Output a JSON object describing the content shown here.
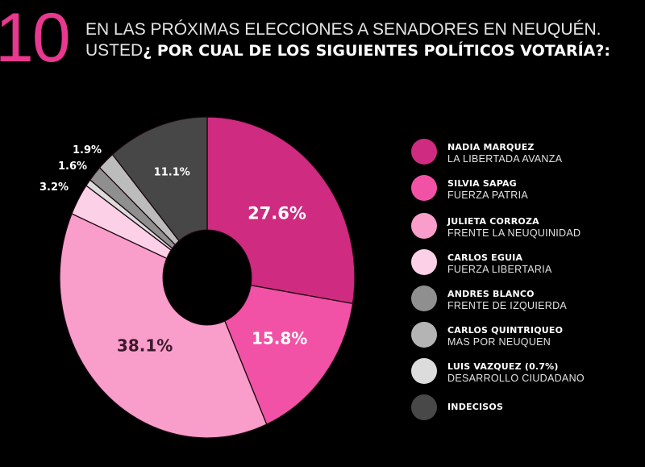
{
  "header": {
    "number": "10",
    "line1": "EN LAS PRÓXIMAS ELECCIONES A SENADORES EN NEUQUÉN.",
    "line2_prefix": "USTED",
    "line2_bold": "¿ POR CUAL DE LOS SIGUIENTES POLÍTICOS VOTARÍA?:",
    "accent_color": "#e8388f"
  },
  "chart_data": {
    "type": "pie",
    "donut": true,
    "title": "EN LAS PRÓXIMAS ELECCIONES A SENADORES EN NEUQUÉN. USTED¿ POR CUAL DE LOS SIGUIENTES POLÍTICOS VOTARÍA?:",
    "start": "top",
    "direction": "clockwise",
    "legend_position": "right",
    "slices": [
      {
        "name": "NADIA MARQUEZ",
        "party": "LA LIBERTADA AVANZA",
        "value": 27.6,
        "label": "27.6%",
        "color": "#cf2b80",
        "label_color": "#ffffff",
        "label_placement": "inside"
      },
      {
        "name": "SILVIA SAPAG",
        "party": "FUERZA PATRIA",
        "value": 15.8,
        "label": "15.8%",
        "color": "#f252a6",
        "label_color": "#ffffff",
        "label_placement": "inside"
      },
      {
        "name": "JULIETA CORROZA",
        "party": "FRENTE LA NEUQUINIDAD",
        "value": 38.1,
        "label": "38.1%",
        "color": "#f99dca",
        "label_color": "#3a1a2a",
        "label_placement": "inside"
      },
      {
        "name": "CARLOS EGUIA",
        "party": "FUERZA LIBERTARIA",
        "value": 3.2,
        "label": "3.2%",
        "color": "#fcd0e6",
        "label_color": "#ffffff",
        "label_placement": "outside"
      },
      {
        "name": "LUIS VAZQUEZ",
        "party": "DESARROLLO CIUDADANO",
        "value": 0.7,
        "label": "",
        "color": "#dcdcdc",
        "label_color": "#ffffff",
        "label_placement": "none"
      },
      {
        "name": "ANDRES BLANCO",
        "party": "FRENTE DE IZQUIERDA",
        "value": 1.6,
        "label": "1.6%",
        "color": "#8f8f8f",
        "label_color": "#ffffff",
        "label_placement": "outside"
      },
      {
        "name": "CARLOS QUINTRIQUEO",
        "party": "MAS POR NEUQUEN",
        "value": 1.9,
        "label": "1.9%",
        "color": "#bcbcbc",
        "label_color": "#ffffff",
        "label_placement": "outside"
      },
      {
        "name": "INDECISOS",
        "party": "",
        "value": 11.1,
        "label": "11.1%",
        "color": "#474747",
        "label_color": "#ffffff",
        "label_placement": "inside"
      }
    ]
  },
  "legend": {
    "items": [
      {
        "name": "NADIA MARQUEZ",
        "party": "LA LIBERTADA AVANZA",
        "color": "#cf2b80"
      },
      {
        "name": "SILVIA SAPAG",
        "party": "FUERZA PATRIA",
        "color": "#f252a6"
      },
      {
        "name": "JULIETA CORROZA",
        "party": "FRENTE LA NEUQUINIDAD",
        "color": "#f99dca"
      },
      {
        "name": "CARLOS EGUIA",
        "party": "FUERZA LIBERTARIA",
        "color": "#fcd0e6"
      },
      {
        "name": "ANDRES BLANCO",
        "party": "FRENTE DE IZQUIERDA",
        "color": "#8f8f8f"
      },
      {
        "name": "CARLOS QUINTRIQUEO",
        "party": "MAS POR NEUQUEN",
        "color": "#b4b4b4"
      },
      {
        "name": "LUIS VAZQUEZ  (0.7%)",
        "party": "DESARROLLO CIUDADANO",
        "color": "#dcdcdc"
      },
      {
        "name": "INDECISOS",
        "party": "",
        "color": "#484848"
      }
    ]
  }
}
